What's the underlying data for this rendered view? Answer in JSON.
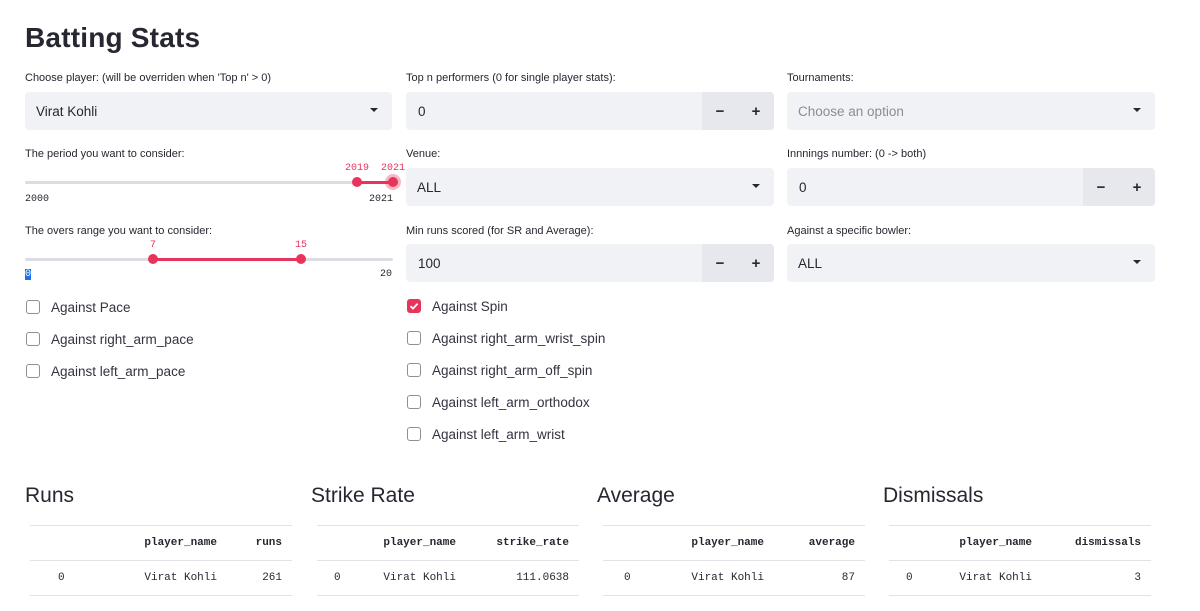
{
  "page_title": "Batting Stats",
  "accent_color": "#e8345a",
  "player": {
    "label": "Choose player: (will be overriden when 'Top n' > 0)",
    "value": "Virat Kohli"
  },
  "top_n": {
    "label": "Top n performers (0 for single player stats):",
    "value": "0",
    "minus": "−",
    "plus": "+"
  },
  "tournaments": {
    "label": "Tournaments:",
    "placeholder": "Choose an option"
  },
  "period": {
    "label": "The period you want to consider:",
    "min": "2000",
    "max": "2021",
    "low": "2019",
    "high": "2021",
    "low_value": 2019,
    "high_value": 2021,
    "range": [
      2000,
      2021
    ]
  },
  "venue": {
    "label": "Venue:",
    "value": "ALL"
  },
  "innings": {
    "label": "Innnings number: (0 -> both)",
    "value": "0",
    "minus": "−",
    "plus": "+"
  },
  "overs": {
    "label": "The overs range you want to consider:",
    "min": "0",
    "max": "20",
    "low": "7",
    "high": "15",
    "low_value": 7,
    "high_value": 15,
    "range": [
      0,
      20
    ]
  },
  "min_runs": {
    "label": "Min runs scored (for SR and Average):",
    "value": "100",
    "minus": "−",
    "plus": "+"
  },
  "bowler": {
    "label": "Against a specific bowler:",
    "value": "ALL"
  },
  "pace_checks": [
    {
      "label": "Against Pace",
      "checked": false
    },
    {
      "label": "Against right_arm_pace",
      "checked": false
    },
    {
      "label": "Against left_arm_pace",
      "checked": false
    }
  ],
  "spin_checks": [
    {
      "label": "Against Spin",
      "checked": true
    },
    {
      "label": "Against right_arm_wrist_spin",
      "checked": false
    },
    {
      "label": "Against right_arm_off_spin",
      "checked": false
    },
    {
      "label": "Against left_arm_orthodox",
      "checked": false
    },
    {
      "label": "Against left_arm_wrist",
      "checked": false
    }
  ],
  "tables": [
    {
      "title": "Runs",
      "headers": [
        "",
        "player_name",
        "runs"
      ],
      "rows": [
        [
          "0",
          "Virat Kohli",
          "261"
        ]
      ]
    },
    {
      "title": "Strike Rate",
      "headers": [
        "",
        "player_name",
        "strike_rate"
      ],
      "rows": [
        [
          "0",
          "Virat Kohli",
          "111.0638"
        ]
      ]
    },
    {
      "title": "Average",
      "headers": [
        "",
        "player_name",
        "average"
      ],
      "rows": [
        [
          "0",
          "Virat Kohli",
          "87"
        ]
      ]
    },
    {
      "title": "Dismissals",
      "headers": [
        "",
        "player_name",
        "dismissals"
      ],
      "rows": [
        [
          "0",
          "Virat Kohli",
          "3"
        ]
      ]
    }
  ]
}
